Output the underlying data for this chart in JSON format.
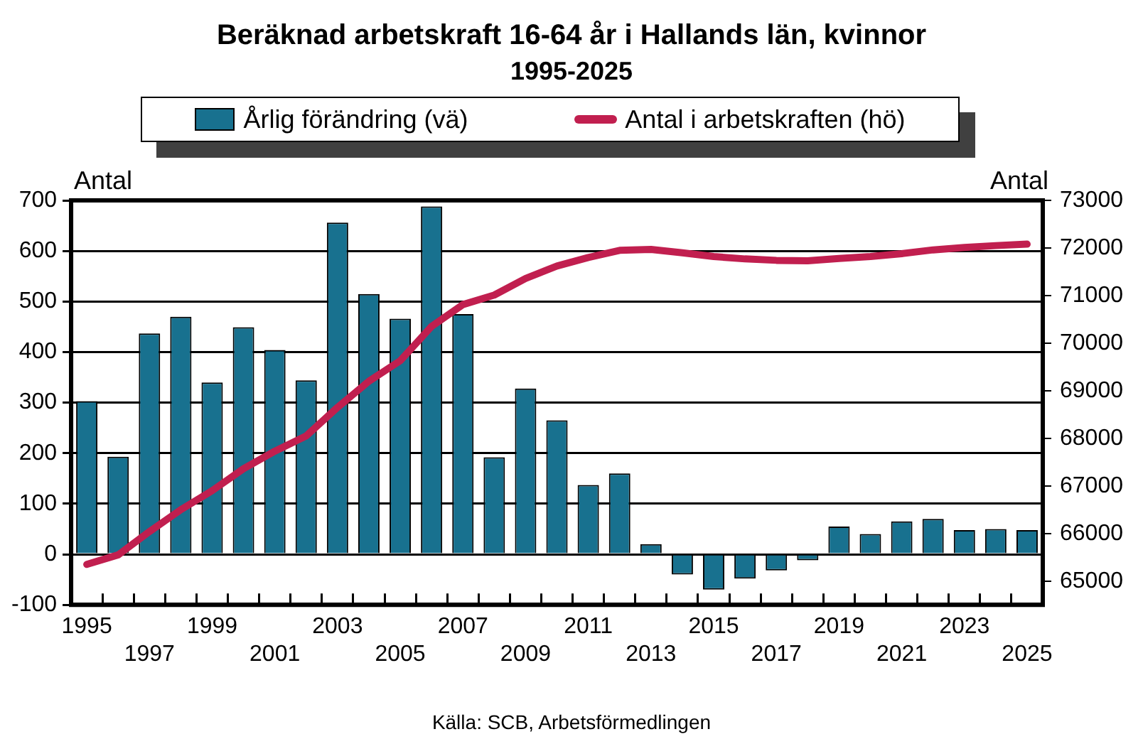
{
  "chart_data": {
    "type": "bar",
    "title": "Beräknad arbetskraft 16-64 år i Hallands län, kvinnor",
    "subtitle": "1995-2025",
    "ylabel": "Antal",
    "y2label": "Antal",
    "categories": [
      "1995",
      null,
      "1997",
      null,
      "1999",
      null,
      "2001",
      null,
      "2003",
      null,
      "2005",
      null,
      "2007",
      null,
      "2009",
      null,
      "2011",
      null,
      "2013",
      null,
      "2015",
      null,
      "2017",
      null,
      "2019",
      null,
      "2021",
      null,
      "2023",
      null,
      "2025"
    ],
    "series": [
      {
        "name": "Årlig förändring (vä)",
        "color": "#18718f",
        "values": [
          303,
          193,
          437,
          470,
          340,
          449,
          404,
          344,
          656,
          515,
          466,
          688,
          475,
          192,
          328,
          265,
          137,
          160,
          20,
          -40,
          -70,
          -48,
          -32,
          -12,
          55,
          40,
          65,
          70,
          48,
          50,
          48
        ]
      },
      {
        "name": "Antal i arbetskraften (hö)",
        "type": "line",
        "axis": "y2",
        "color": "#c11f4f",
        "values": [
          65350,
          65550,
          66040,
          66500,
          66900,
          67360,
          67730,
          68050,
          68650,
          69200,
          69630,
          70350,
          70810,
          71010,
          71360,
          71620,
          71800,
          71950,
          71970,
          71900,
          71820,
          71770,
          71740,
          71730,
          71780,
          71820,
          71880,
          71960,
          72010,
          72050,
          72080
        ]
      }
    ],
    "ylim": [
      -100,
      700
    ],
    "yticks": [
      -100,
      0,
      100,
      200,
      300,
      400,
      500,
      600,
      700
    ],
    "y2lim": [
      64500,
      73000
    ],
    "y2ticks": [
      65000,
      66000,
      67000,
      68000,
      69000,
      70000,
      71000,
      72000,
      73000
    ],
    "grid": "y",
    "legend": "top",
    "marker": "none",
    "line_style": "solid",
    "annotations": [
      "Källa: SCB, Arbetsförmedlingen"
    ]
  }
}
